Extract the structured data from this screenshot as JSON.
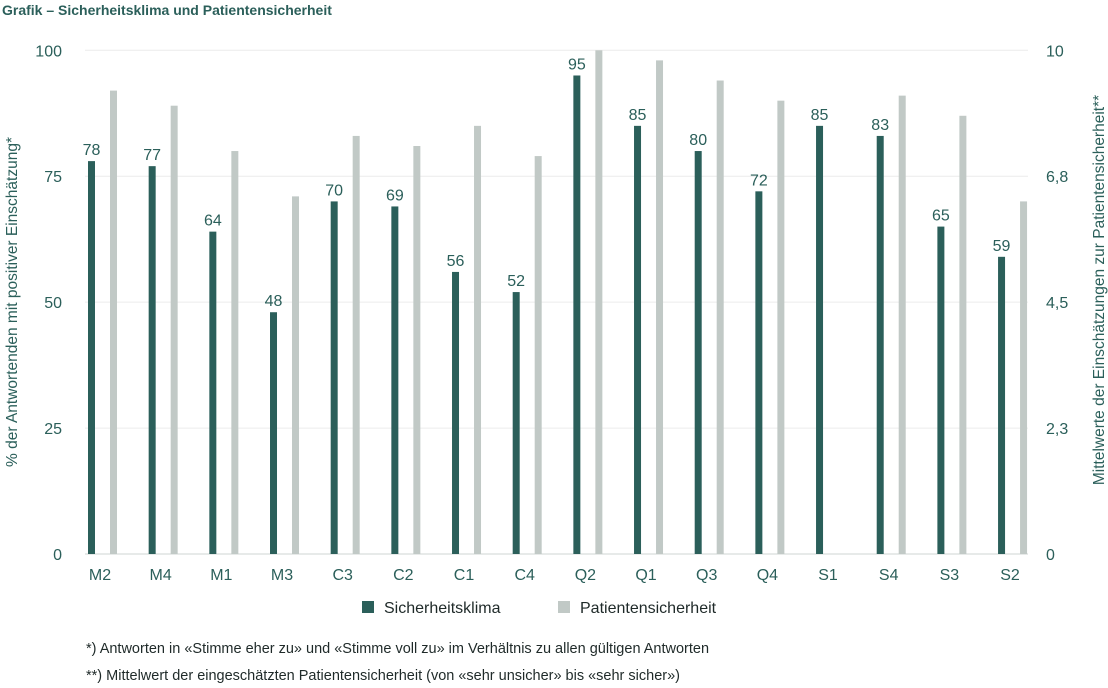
{
  "chart_data": {
    "type": "bar",
    "title": "Grafik – Sicherheitsklima und Patientensicherheit",
    "ylabel": "% der Antwortenden mit positiver Einschätzung*",
    "y2label": "Mittelwerte der Einschätzungen zur Patientensicherheit**",
    "ylim": [
      0,
      100
    ],
    "y2lim": [
      0,
      10
    ],
    "yticks": [
      "0",
      "25",
      "50",
      "75",
      "100"
    ],
    "y2ticks": [
      "0",
      "2,3",
      "4,5",
      "6,8",
      "10"
    ],
    "grid": true,
    "legend_position": "bottom",
    "categories": [
      "M2",
      "M4",
      "M1",
      "M3",
      "C3",
      "C2",
      "C1",
      "C4",
      "Q2",
      "Q1",
      "Q3",
      "Q4",
      "S1",
      "S4",
      "S3",
      "S2"
    ],
    "series": [
      {
        "name": "Sicherheitsklima",
        "axis": "left",
        "color": "#2b5f5a",
        "labels": true,
        "values": [
          78,
          77,
          64,
          48,
          70,
          69,
          56,
          52,
          95,
          85,
          80,
          72,
          85,
          83,
          65,
          59
        ]
      },
      {
        "name": "Patientensicherheit",
        "axis": "right",
        "color": "#c1c9c6",
        "labels": false,
        "values": [
          9.2,
          8.9,
          8.0,
          7.1,
          8.3,
          8.1,
          8.5,
          7.9,
          10.0,
          9.8,
          9.4,
          9.0,
          null,
          9.1,
          8.7,
          7.0
        ]
      }
    ]
  },
  "footnotes": [
    "*) Antworten in «Stimme eher zu» und «Stimme voll zu» im Verhältnis zu allen gültigen Antworten",
    "**) Mittelwert der eingeschätzten Patientensicherheit (von «sehr unsicher» bis «sehr sicher»)"
  ]
}
